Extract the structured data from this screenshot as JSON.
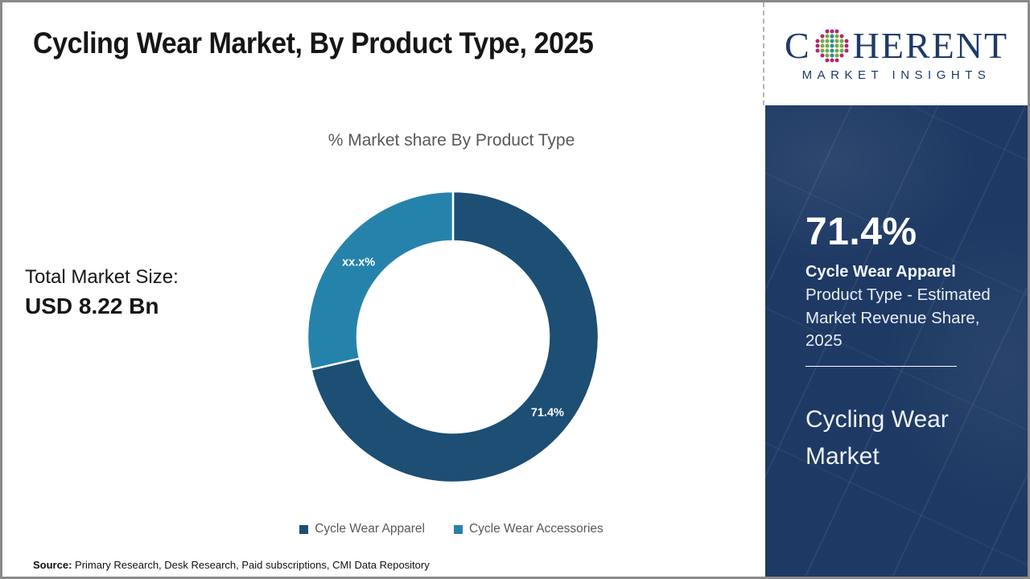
{
  "header": {
    "title": "Cycling Wear Market, By Product Type, 2025"
  },
  "logo": {
    "brand_prefix": "C",
    "brand_suffix": "HERENT",
    "brand_sub": "MARKET INSIGHTS",
    "brand_color": "#1d3a6b",
    "icon": "dotted-globe-icon",
    "icon_colors": {
      "outer": "#b02670",
      "mid": "#6fae45",
      "center": "#2d8c8c"
    }
  },
  "left_panel": {
    "total_label": "Total Market Size:",
    "total_value": "USD 8.22 Bn"
  },
  "chart_data": {
    "type": "pie",
    "subtype": "donut",
    "title": "% Market share By Product Type",
    "segments": [
      {
        "name": "Cycle Wear Apparel",
        "value": 71.4,
        "label": "71.4%",
        "color": "#1d4e74"
      },
      {
        "name": "Cycle Wear Accessories",
        "value": 28.6,
        "label": "xx.x%",
        "color": "#2583ab"
      }
    ],
    "start_angle_deg": 0,
    "direction": "clockwise",
    "outer_radius": 181,
    "inner_radius": 119,
    "separator_color": "#ffffff",
    "legend_position": "bottom",
    "label_color": "#ffffff"
  },
  "sidebar": {
    "bg_color": "#1e3a64",
    "stat_value": "71.4%",
    "stat_title": "Cycle Wear Apparel",
    "stat_desc": "Product Type - Estimated Market Revenue Share, 2025",
    "market_name": "Cycling Wear Market"
  },
  "footer": {
    "source_label": "Source:",
    "source_text": " Primary Research, Desk Research, Paid subscriptions, CMI Data Repository"
  }
}
